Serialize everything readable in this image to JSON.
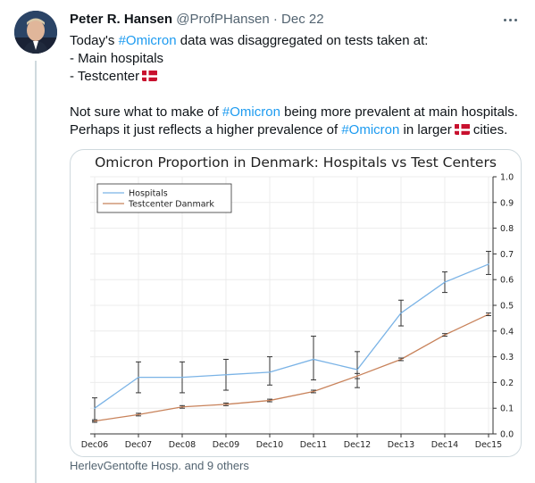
{
  "tweet": {
    "author_name": "Peter R. Hansen",
    "handle": "@ProfPHansen",
    "separator": "·",
    "date": "Dec 22",
    "line1_pre": "Today's ",
    "line1_tag": "#Omicron",
    "line1_post": " data was disaggregated on tests taken at:",
    "line2": "- Main hospitals",
    "line3": "- Testcenter",
    "line4_pre": "Not sure what to make of ",
    "line4_tag": "#Omicron",
    "line4_post": " being more prevalent at main hospitals.",
    "line5_pre": "Perhaps it just reflects a higher prevalence of ",
    "line5_tag": "#Omicron",
    "line5_post": " in larger",
    "line5_end": " cities.",
    "tagged": "HerlevGentofte Hosp. and 9 others"
  },
  "icons": {
    "more": "more-options-icon",
    "flag": "denmark-flag-icon"
  },
  "colors": {
    "hashtag": "#1d9bf0",
    "hospitals": "#7ab3e6",
    "testcenter": "#c8825a",
    "error_bar": "#333333",
    "flag_red": "#c8102e"
  },
  "chart_data": {
    "type": "line",
    "title": "Omicron Proportion in Denmark: Hospitals vs Test Centers",
    "categories": [
      "Dec06",
      "Dec07",
      "Dec08",
      "Dec09",
      "Dec10",
      "Dec11",
      "Dec12",
      "Dec13",
      "Dec14",
      "Dec15"
    ],
    "yticks": [
      "0.0",
      "0.1",
      "0.2",
      "0.3",
      "0.4",
      "0.5",
      "0.6",
      "0.7",
      "0.8",
      "0.9",
      "1.0"
    ],
    "ylim": [
      0,
      1
    ],
    "grid": true,
    "legend_position": "top-left",
    "series": [
      {
        "name": "Hospitals",
        "values": [
          0.1,
          0.22,
          0.22,
          0.23,
          0.24,
          0.29,
          0.25,
          0.47,
          0.59,
          0.66
        ],
        "err_low": [
          0.05,
          0.16,
          0.16,
          0.17,
          0.19,
          0.21,
          0.18,
          0.42,
          0.55,
          0.62
        ],
        "err_high": [
          0.14,
          0.28,
          0.28,
          0.29,
          0.3,
          0.38,
          0.32,
          0.52,
          0.63,
          0.71
        ]
      },
      {
        "name": "Testcenter Danmark",
        "values": [
          0.05,
          0.075,
          0.105,
          0.115,
          0.13,
          0.165,
          0.225,
          0.29,
          0.385,
          0.465
        ],
        "err_low": [
          0.045,
          0.07,
          0.1,
          0.11,
          0.125,
          0.16,
          0.215,
          0.285,
          0.38,
          0.46
        ],
        "err_high": [
          0.055,
          0.08,
          0.11,
          0.12,
          0.135,
          0.17,
          0.235,
          0.295,
          0.39,
          0.47
        ]
      }
    ]
  }
}
